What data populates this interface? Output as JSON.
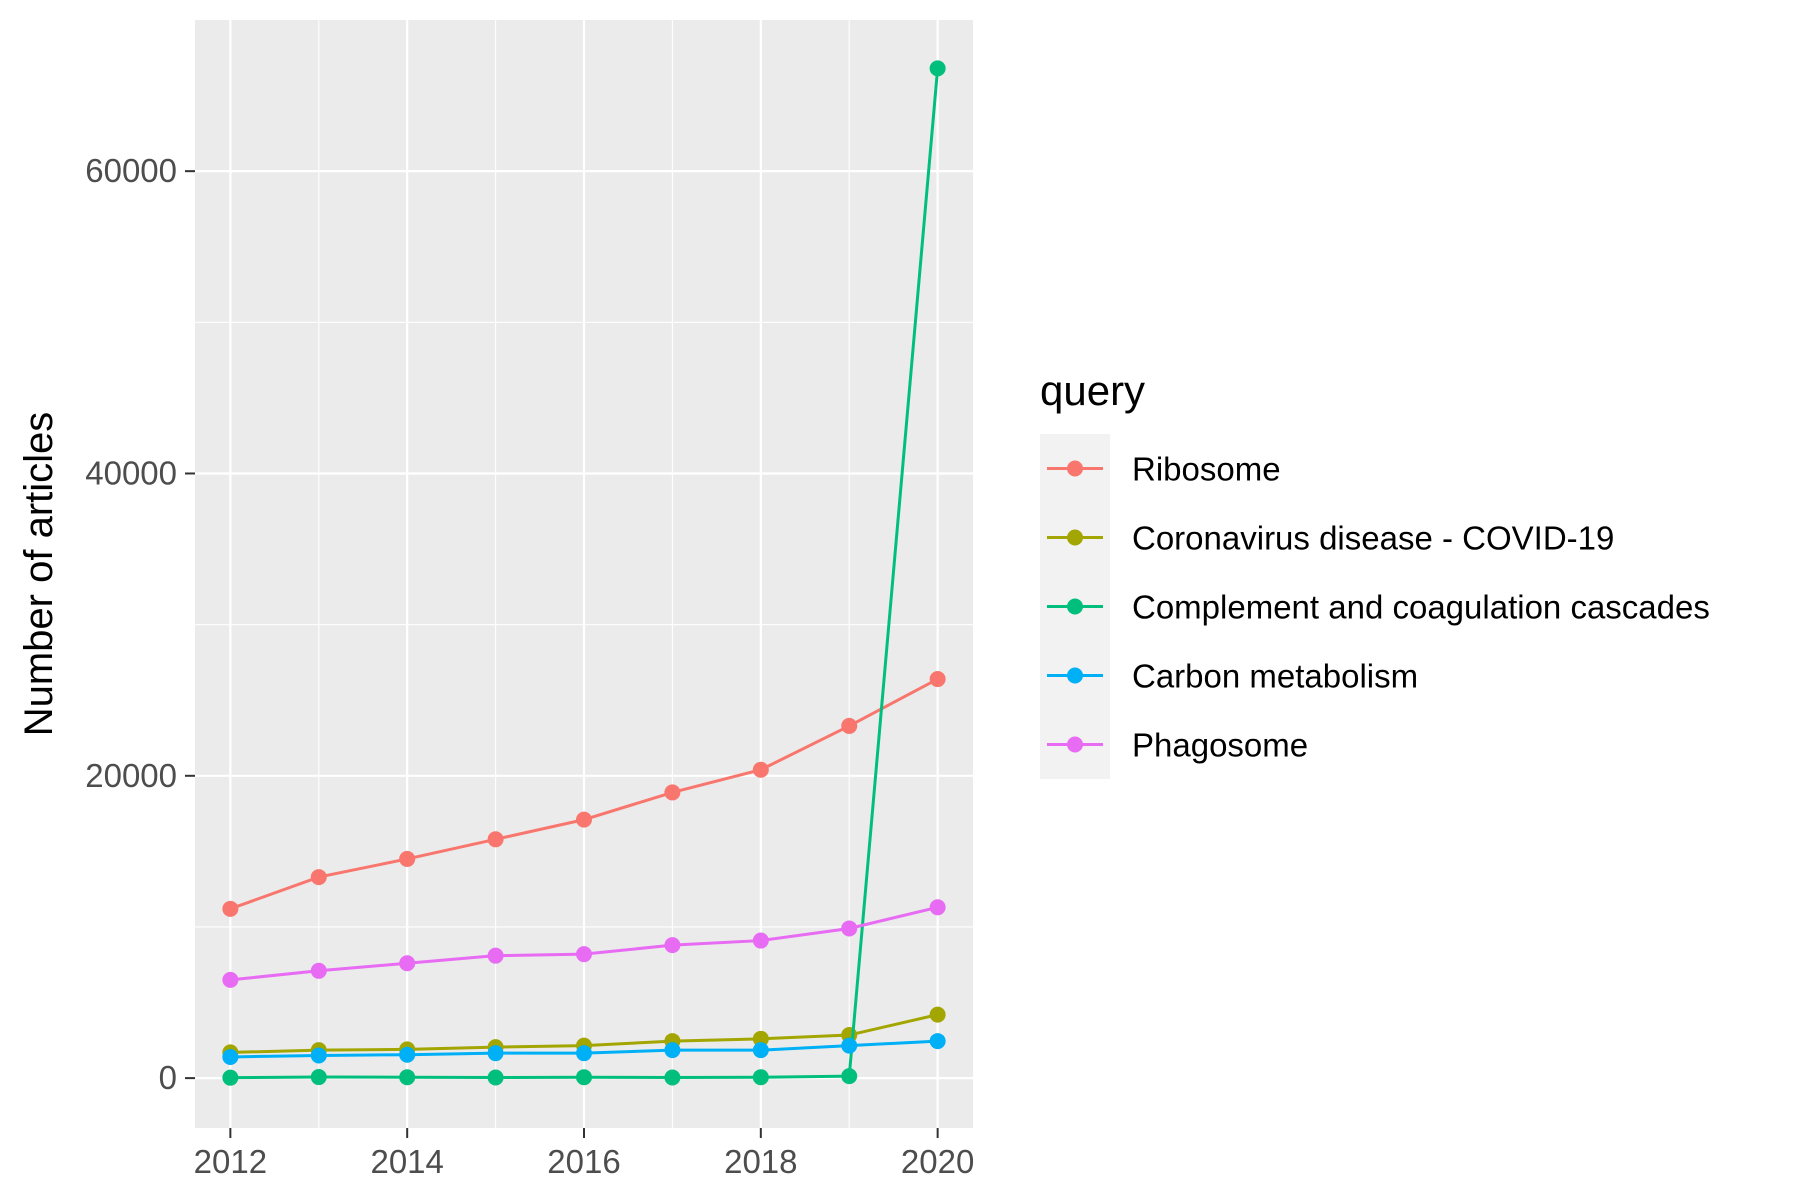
{
  "chart_data": {
    "type": "line",
    "title": "",
    "xlabel": "",
    "ylabel": "Number of articles",
    "x": [
      2012,
      2013,
      2014,
      2015,
      2016,
      2017,
      2018,
      2019,
      2020
    ],
    "x_ticks": [
      "2012",
      "2014",
      "2016",
      "2018",
      "2020"
    ],
    "y_ticks": [
      "0",
      "20000",
      "40000",
      "60000"
    ],
    "xlim": [
      2011.6,
      2020.4
    ],
    "ylim": [
      -3300,
      70000
    ],
    "grid": true,
    "legend_title": "query",
    "legend_position": "right",
    "series": [
      {
        "name": "Ribosome",
        "color": "#F8766D",
        "values": [
          11200,
          13300,
          14500,
          15800,
          17100,
          18900,
          20400,
          23300,
          26400
        ]
      },
      {
        "name": "Coronavirus disease - COVID-19",
        "color": "#A3A500",
        "values": [
          1700,
          1850,
          1900,
          2050,
          2150,
          2450,
          2600,
          2850,
          4200
        ]
      },
      {
        "name": "Complement and coagulation cascades",
        "color": "#00BF7D",
        "values": [
          30,
          70,
          60,
          40,
          60,
          40,
          60,
          130,
          66800
        ]
      },
      {
        "name": "Carbon metabolism",
        "color": "#00B0F6",
        "values": [
          1400,
          1500,
          1550,
          1650,
          1650,
          1850,
          1850,
          2150,
          2450
        ]
      },
      {
        "name": "Phagosome",
        "color": "#E76BF3",
        "values": [
          6500,
          7100,
          7600,
          8100,
          8200,
          8800,
          9100,
          9900,
          11300
        ]
      }
    ]
  }
}
